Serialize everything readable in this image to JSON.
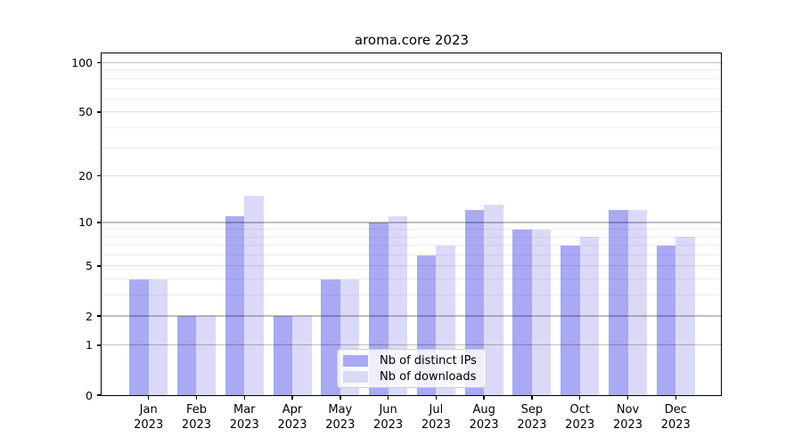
{
  "chart_data": {
    "type": "bar",
    "title": "aroma.core 2023",
    "categories": [
      "Jan",
      "Feb",
      "Mar",
      "Apr",
      "May",
      "Jun",
      "Jul",
      "Aug",
      "Sep",
      "Oct",
      "Nov",
      "Dec"
    ],
    "category_year": "2023",
    "series": [
      {
        "name": "Nb of distinct IPs",
        "color": "#a9a9f4",
        "values": [
          4,
          2,
          11,
          2,
          4,
          10,
          6,
          12,
          9,
          7,
          12,
          7
        ]
      },
      {
        "name": "Nb of downloads",
        "color": "#dadaf8",
        "values": [
          4,
          2,
          15,
          2,
          4,
          11,
          7,
          13,
          9,
          8,
          12,
          8
        ]
      }
    ],
    "xlabel": "",
    "ylabel": "",
    "y_axis": {
      "scale": "log1p",
      "tick_values": [
        100,
        50,
        20,
        10,
        5,
        2,
        1,
        0
      ],
      "tick_labels": [
        "100",
        "50",
        "20",
        "10",
        "5",
        "2",
        "1",
        "0"
      ],
      "top_value": 114
    },
    "grid": {
      "on": true,
      "major": [
        1,
        2,
        10,
        100
      ],
      "mid": [
        5,
        20,
        50
      ],
      "minor": [
        3,
        4,
        6,
        7,
        8,
        9,
        30,
        40,
        60,
        70,
        80,
        90
      ]
    },
    "legend": {
      "position": "lower-center",
      "entries": [
        "Nb of distinct IPs",
        "Nb of downloads"
      ]
    }
  }
}
